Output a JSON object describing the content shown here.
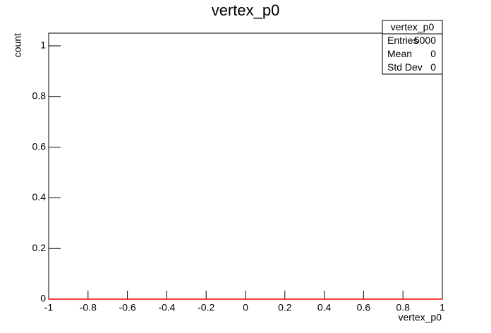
{
  "chart_data": {
    "type": "histogram",
    "title": "vertex_p0",
    "x_label": "vertex_p0",
    "y_label": "count",
    "bins": [
      -1,
      1
    ],
    "values": [
      0
    ],
    "color": "#ff0000",
    "xlim": [
      -1,
      1
    ],
    "xticks": [
      -1,
      -0.8,
      -0.6,
      -0.4,
      -0.2,
      0,
      0.2,
      0.4,
      0.6,
      0.8,
      1
    ],
    "ylim": [
      0,
      1.05
    ],
    "yticks": [
      0,
      0.2,
      0.4,
      0.6,
      0.8,
      1
    ],
    "stats": {
      "title": "vertex_p0",
      "rows": [
        {
          "label": "Entries",
          "value": 5000
        },
        {
          "label": "Mean",
          "value": 0
        },
        {
          "label": "Std Dev",
          "value": 0
        }
      ]
    }
  }
}
